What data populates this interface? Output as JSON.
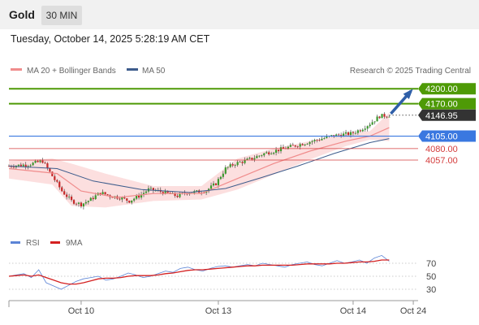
{
  "header": {
    "title": "Gold",
    "timeframe": "30 MIN"
  },
  "timestamp": "Tuesday, October 14, 2025 5:28:19 AM CET",
  "legend": {
    "ma20": "MA 20 + Bollinger Bands",
    "ma50": "MA 50",
    "credit": "Research © 2025 Trading Central"
  },
  "colors": {
    "resistance": "#4e9a06",
    "support_blue": "#3a78e0",
    "support_red": "#d43b3b",
    "current": "#333333",
    "arrow": "#2f5fa8",
    "ma20": "#f08c8c",
    "ma50": "#3d5c8c",
    "bollinger": "#fbd7d7",
    "rsi": "#5b84d6",
    "rsi_ma": "#d42020"
  },
  "chart_data": [
    {
      "type": "line",
      "subtype": "candlestick",
      "title": "",
      "x_tick_labels": [
        "Oct 10",
        "Oct 13",
        "Oct 14",
        "Oct 24"
      ],
      "ylim": [
        3930,
        4215
      ],
      "levels": [
        {
          "value": 4200.0,
          "label": "4200.00",
          "kind": "resistance"
        },
        {
          "value": 4170.0,
          "label": "4170.00",
          "kind": "resistance"
        },
        {
          "value": 4146.95,
          "label": "4146.95",
          "kind": "current"
        },
        {
          "value": 4105.0,
          "label": "4105.00",
          "kind": "pivot"
        },
        {
          "value": 4080.0,
          "label": "4080.00",
          "kind": "support"
        },
        {
          "value": 4057.0,
          "label": "4057.00",
          "kind": "support"
        }
      ],
      "series_names": [
        "MA 20 + Bollinger Bands",
        "MA 50"
      ],
      "close_path": [
        [
          0,
          4045
        ],
        [
          8,
          4048
        ],
        [
          14,
          4055
        ],
        [
          18,
          4025
        ],
        [
          22,
          3995
        ],
        [
          26,
          3975
        ],
        [
          30,
          3968
        ],
        [
          34,
          3978
        ],
        [
          38,
          3992
        ],
        [
          42,
          3985
        ],
        [
          46,
          3982
        ],
        [
          50,
          3975
        ],
        [
          54,
          3985
        ],
        [
          58,
          3998
        ],
        [
          62,
          3995
        ],
        [
          66,
          3990
        ],
        [
          70,
          3985
        ],
        [
          74,
          3992
        ],
        [
          78,
          3993
        ],
        [
          82,
          3996
        ],
        [
          86,
          4010
        ],
        [
          90,
          4040
        ],
        [
          94,
          4050
        ],
        [
          98,
          4055
        ],
        [
          102,
          4062
        ],
        [
          106,
          4070
        ],
        [
          110,
          4075
        ],
        [
          114,
          4080
        ],
        [
          118,
          4085
        ],
        [
          122,
          4090
        ],
        [
          126,
          4095
        ],
        [
          130,
          4100
        ],
        [
          134,
          4105
        ],
        [
          138,
          4108
        ],
        [
          142,
          4110
        ],
        [
          146,
          4118
        ],
        [
          150,
          4130
        ],
        [
          154,
          4145
        ],
        [
          158,
          4146.95
        ]
      ],
      "ma20_path": [
        [
          0,
          4040
        ],
        [
          20,
          4030
        ],
        [
          30,
          3995
        ],
        [
          45,
          3982
        ],
        [
          60,
          3990
        ],
        [
          80,
          3990
        ],
        [
          95,
          4020
        ],
        [
          110,
          4050
        ],
        [
          125,
          4075
        ],
        [
          140,
          4095
        ],
        [
          150,
          4105
        ],
        [
          158,
          4122
        ]
      ],
      "bollinger_upper": [
        [
          0,
          4055
        ],
        [
          18,
          4060
        ],
        [
          26,
          4050
        ],
        [
          40,
          4030
        ],
        [
          60,
          4005
        ],
        [
          80,
          4005
        ],
        [
          95,
          4060
        ],
        [
          110,
          4080
        ],
        [
          125,
          4095
        ],
        [
          140,
          4110
        ],
        [
          150,
          4115
        ],
        [
          158,
          4152
        ]
      ],
      "bollinger_lower": [
        [
          0,
          4020
        ],
        [
          18,
          4008
        ],
        [
          26,
          3965
        ],
        [
          40,
          3962
        ],
        [
          60,
          3975
        ],
        [
          80,
          3978
        ],
        [
          95,
          3998
        ],
        [
          110,
          4028
        ],
        [
          125,
          4058
        ],
        [
          140,
          4085
        ],
        [
          150,
          4098
        ],
        [
          158,
          4095
        ]
      ],
      "ma50_path": [
        [
          0,
          4045
        ],
        [
          20,
          4040
        ],
        [
          35,
          4015
        ],
        [
          55,
          3998
        ],
        [
          75,
          3992
        ],
        [
          90,
          4000
        ],
        [
          105,
          4022
        ],
        [
          120,
          4045
        ],
        [
          135,
          4070
        ],
        [
          150,
          4092
        ],
        [
          158,
          4100
        ]
      ],
      "forecast_arrow": {
        "from": [
          158,
          4150
        ],
        "to": [
          168,
          4200
        ]
      },
      "x_total": 170,
      "x_tick_positions": [
        30,
        87,
        143,
        168
      ]
    },
    {
      "type": "line",
      "title": "",
      "ylim": [
        20,
        85
      ],
      "y_ticks": [
        70,
        50,
        30
      ],
      "series": [
        {
          "name": "RSI",
          "values": [
            50,
            52,
            54,
            48,
            60,
            40,
            35,
            30,
            36,
            42,
            46,
            48,
            50,
            44,
            46,
            50,
            55,
            52,
            48,
            50,
            54,
            58,
            56,
            62,
            64,
            60,
            58,
            62,
            65,
            66,
            64,
            66,
            68,
            66,
            70,
            68,
            66,
            64,
            68,
            70,
            72,
            68,
            66,
            70,
            74,
            70,
            72,
            75,
            70,
            78,
            82,
            73
          ]
        },
        {
          "name": "9MA",
          "values": [
            50,
            51,
            52,
            50,
            52,
            48,
            44,
            40,
            38,
            38,
            40,
            43,
            46,
            47,
            47,
            48,
            50,
            51,
            51,
            51,
            52,
            54,
            55,
            57,
            59,
            60,
            60,
            61,
            62,
            63,
            64,
            65,
            66,
            66,
            67,
            67,
            67,
            67,
            67,
            68,
            69,
            69,
            69,
            69,
            70,
            70,
            71,
            72,
            72,
            73,
            75,
            75
          ]
        }
      ],
      "legend": [
        "RSI",
        "9MA"
      ]
    }
  ]
}
